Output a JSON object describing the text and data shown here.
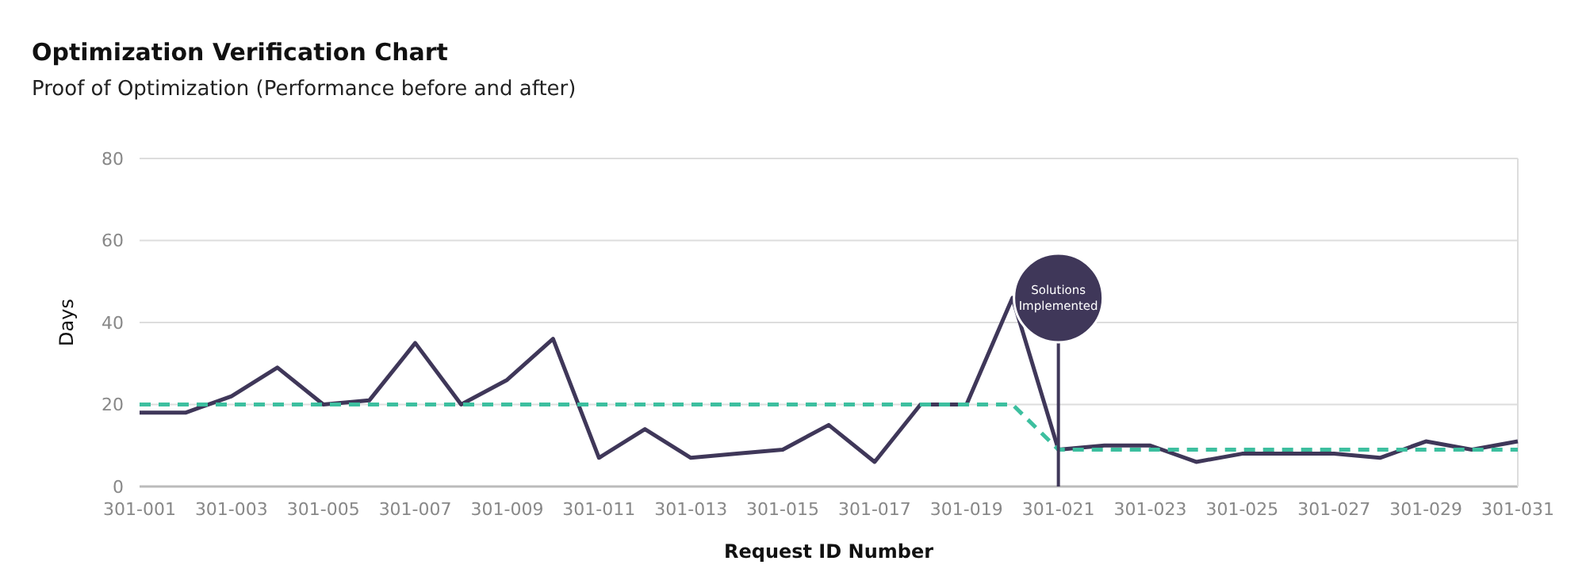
{
  "chart_data": {
    "type": "line",
    "title": "Optimization Verification Chart",
    "subtitle": "Proof of Optimization (Performance before and after)",
    "xlabel": "Request ID Number",
    "ylabel": "Days",
    "categories": [
      "301-001",
      null,
      "301-003",
      null,
      "301-005",
      null,
      "301-007",
      null,
      "301-009",
      null,
      "301-011",
      null,
      "301-013",
      null,
      "301-015",
      null,
      "301-017",
      null,
      "301-019",
      null,
      "301-021",
      null,
      "301-023",
      null,
      "301-025",
      null,
      "301-027",
      null,
      "301-029",
      null,
      "301-031"
    ],
    "series": [
      {
        "color": "#3f3759",
        "line_style": "solid",
        "values": [
          18,
          18,
          22,
          29,
          20,
          21,
          35,
          20,
          26,
          36,
          7,
          14,
          7,
          8,
          9,
          15,
          6,
          20,
          20,
          46,
          9,
          10,
          10,
          6,
          8,
          8,
          8,
          7,
          11,
          9,
          11
        ]
      },
      {
        "color": "#3dbf9f",
        "line_style": "dashed",
        "values": [
          20,
          20,
          20,
          20,
          20,
          20,
          20,
          20,
          20,
          20,
          20,
          20,
          20,
          20,
          20,
          20,
          20,
          20,
          20,
          20,
          9,
          9,
          9,
          9,
          9,
          9,
          9,
          9,
          9,
          9,
          9
        ]
      }
    ],
    "ylim": [
      0,
      80
    ],
    "yticks": [
      0,
      20,
      40,
      60,
      80
    ],
    "grid": "y",
    "marker": "none",
    "ref_lines": [
      {
        "axis": "x",
        "value": "301-021",
        "label": "Solutions Implemented",
        "color": "#3f3759"
      }
    ]
  }
}
